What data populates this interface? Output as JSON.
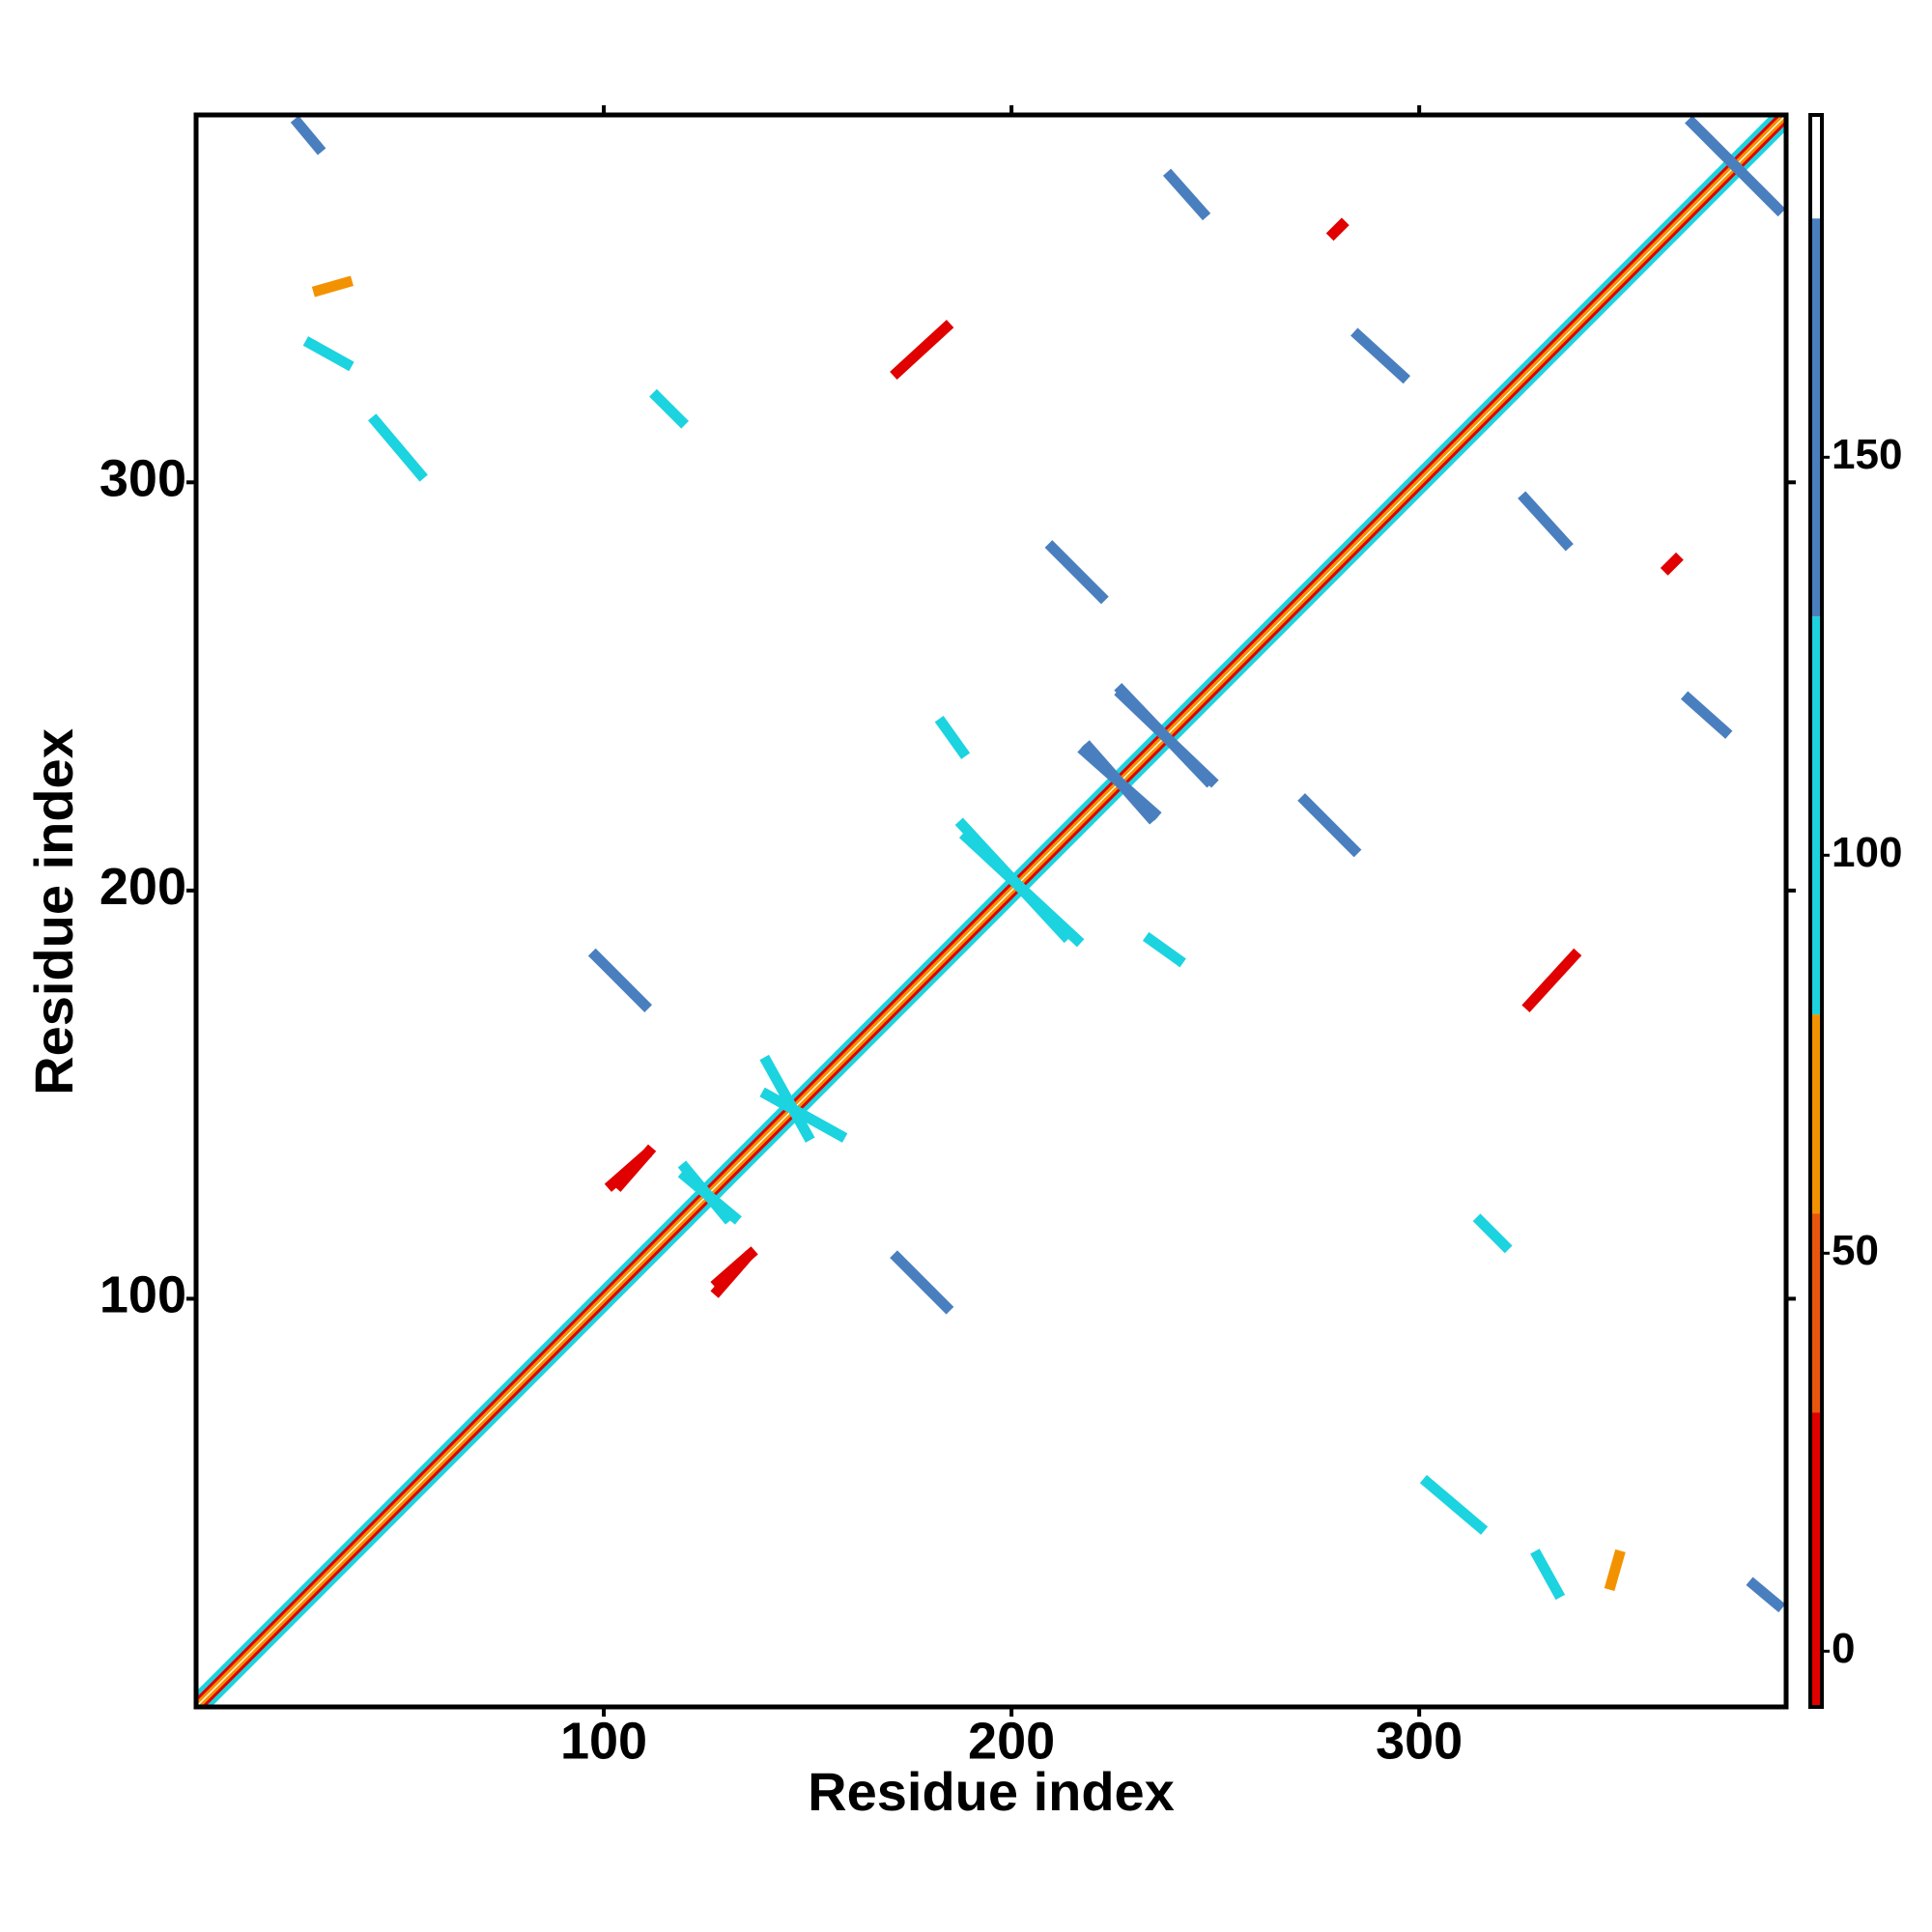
{
  "chart_data": {
    "type": "contact_map",
    "xlabel": "Residue index",
    "ylabel": "Residue index",
    "xlim": [
      0,
      390
    ],
    "ylim": [
      0,
      390
    ],
    "xticks": [
      100,
      200,
      300
    ],
    "yticks": [
      100,
      200,
      300
    ],
    "symmetric": true,
    "colorbar": {
      "bounds": [
        -7,
        30,
        55,
        80,
        130,
        180,
        193
      ],
      "colors": [
        "#e00000",
        "#e8560c",
        "#f39200",
        "#1cd3e0",
        "#4a7fbf",
        "#ffffff"
      ],
      "ticks": [
        0,
        50,
        100,
        150
      ]
    },
    "diagonal_bands": [
      {
        "offset": 1,
        "value": 60
      },
      {
        "offset": 2,
        "value": 10
      },
      {
        "offset": 3,
        "value": 100
      }
    ],
    "contacts": [
      {
        "x": [
          98,
          110
        ],
        "y": [
          184,
          172
        ],
        "value": 150
      },
      {
        "x": [
          210,
          222
        ],
        "y": [
          284,
          272
        ],
        "value": 150
      },
      {
        "x": [
          285,
          296
        ],
        "y": [
          336,
          326
        ],
        "value": 150
      },
      {
        "x": [
          239,
          247
        ],
        "y": [
          375,
          366
        ],
        "value": 150
      },
      {
        "x": [
          367,
          388
        ],
        "y": [
          388,
          367
        ],
        "value": 150
      },
      {
        "x": [
          25,
          30
        ],
        "y": [
          388,
          382
        ],
        "value": 150
      },
      {
        "x": [
          218,
          235
        ],
        "y": [
          234,
          219
        ],
        "value": 150
      },
      {
        "x": [
          227,
          248
        ],
        "y": [
          249,
          227
        ],
        "value": 150
      },
      {
        "x": [
          188,
          213
        ],
        "y": [
          216,
          189
        ],
        "value": 100
      },
      {
        "x": [
          172,
          184
        ],
        "y": [
          327,
          338
        ],
        "value": 10
      },
      {
        "x": [
          279,
          281
        ],
        "y": [
          361,
          363
        ],
        "value": 10
      },
      {
        "x": [
          102,
          110
        ],
        "y": [
          128,
          135
        ],
        "value": 10
      },
      {
        "x": [
          128,
          136
        ],
        "y": [
          104,
          111
        ],
        "value": 10
      },
      {
        "x": [
          44,
          55
        ],
        "y": [
          315,
          302
        ],
        "value": 100
      },
      {
        "x": [
          113,
          119
        ],
        "y": [
          321,
          315
        ],
        "value": 100
      },
      {
        "x": [
          183,
          188
        ],
        "y": [
          241,
          234
        ],
        "value": 100
      },
      {
        "x": [
          30,
          37
        ],
        "y": [
          347,
          349
        ],
        "value": 60
      },
      {
        "x": [
          329,
          334
        ],
        "y": [
          37,
          28
        ],
        "value": 100
      },
      {
        "x": [
          140,
          158
        ],
        "y": [
          150,
          140
        ],
        "value": 100
      },
      {
        "x": [
          120,
          130
        ],
        "y": [
          132,
          120
        ],
        "value": 100
      }
    ]
  }
}
